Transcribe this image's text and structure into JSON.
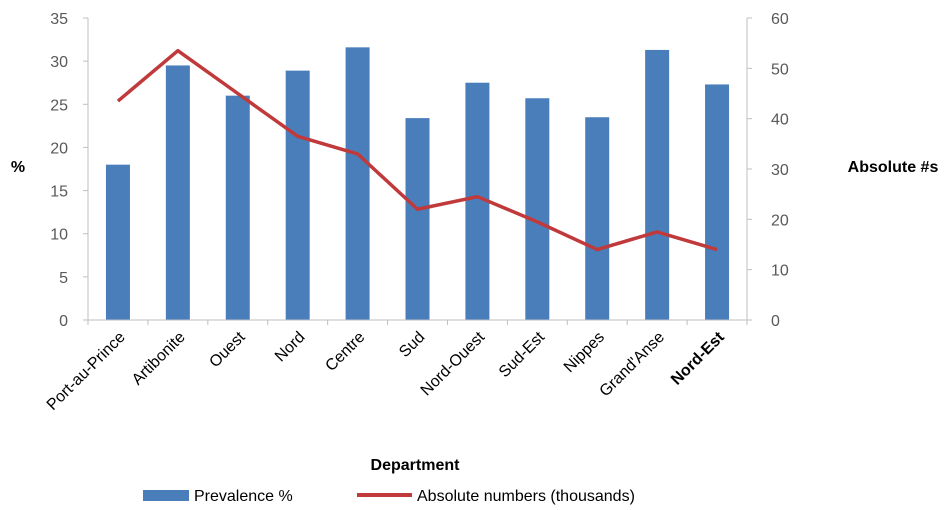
{
  "chart_data": {
    "type": "bar",
    "title": "",
    "xlabel": "Department",
    "ylabel": "%",
    "y2label": "Absolute #s",
    "categories": [
      "Port-au-Prince",
      "Artibonite",
      "Ouest",
      "Nord",
      "Centre",
      "Sud",
      "Nord-Ouest",
      "Sud-Est",
      "Nippes",
      "Grand'Anse",
      "Nord-Est"
    ],
    "ylim": [
      0,
      35
    ],
    "y2lim": [
      0,
      60
    ],
    "yticks": [
      "0",
      "5",
      "10",
      "15",
      "20",
      "25",
      "30",
      "35"
    ],
    "y2ticks": [
      "0",
      "10",
      "20",
      "30",
      "40",
      "50",
      "60"
    ],
    "grid": false,
    "legend_position": "bottom",
    "series": [
      {
        "name": "Prevalence %",
        "type": "bar",
        "axis": "left",
        "color": "#4a7ebb",
        "values": [
          18,
          29.5,
          26,
          28.9,
          31.6,
          23.4,
          27.5,
          25.7,
          23.5,
          31.3,
          27.3
        ]
      },
      {
        "name": "Absolute numbers (thousands)",
        "type": "line",
        "axis": "right",
        "color": "#c0393b",
        "values": [
          43.5,
          53.5,
          45,
          36.5,
          33,
          22,
          24.5,
          19.5,
          14,
          17.5,
          14
        ]
      }
    ]
  }
}
